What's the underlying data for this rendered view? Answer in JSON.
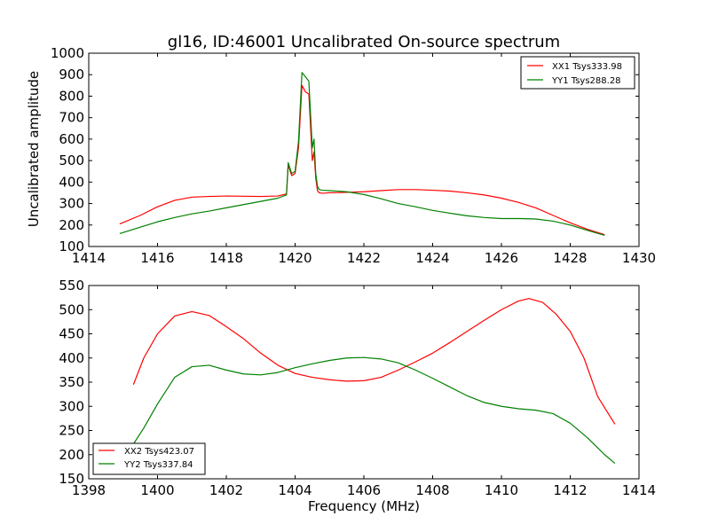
{
  "chart_data": [
    {
      "type": "line",
      "title": "gl16, ID:46001 Uncalibrated On-source spectrum",
      "xlabel": "",
      "ylabel": "Uncalibrated amplitude",
      "xlim": [
        1414,
        1430
      ],
      "ylim": [
        100,
        1000
      ],
      "xticks": [
        "1414",
        "1416",
        "1418",
        "1420",
        "1422",
        "1424",
        "1426",
        "1428",
        "1430"
      ],
      "yticks": [
        "100",
        "200",
        "300",
        "400",
        "500",
        "600",
        "700",
        "800",
        "900",
        "1000"
      ],
      "legend_position": "top-right",
      "grid": false,
      "series": [
        {
          "name": "XX1 Tsys333.98",
          "color": "#ff0000",
          "x": [
            1414.9,
            1415.5,
            1416.0,
            1416.5,
            1417.0,
            1417.5,
            1418.0,
            1418.5,
            1419.0,
            1419.5,
            1419.75,
            1419.8,
            1419.9,
            1420.0,
            1420.1,
            1420.2,
            1420.3,
            1420.4,
            1420.5,
            1420.55,
            1420.6,
            1420.65,
            1420.7,
            1420.8,
            1421.0,
            1421.5,
            1422.0,
            1422.5,
            1423.0,
            1423.5,
            1424.0,
            1424.5,
            1425.0,
            1425.5,
            1426.0,
            1426.5,
            1427.0,
            1427.5,
            1428.0,
            1428.5,
            1429.0
          ],
          "y": [
            205,
            245,
            285,
            315,
            330,
            333,
            335,
            334,
            333,
            335,
            345,
            480,
            430,
            440,
            560,
            850,
            820,
            810,
            500,
            540,
            420,
            360,
            350,
            348,
            350,
            352,
            355,
            360,
            365,
            365,
            362,
            358,
            350,
            340,
            325,
            305,
            280,
            245,
            210,
            180,
            155
          ]
        },
        {
          "name": "YY1 Tsys288.28",
          "color": "#008000",
          "x": [
            1414.9,
            1415.5,
            1416.0,
            1416.5,
            1417.0,
            1417.5,
            1418.0,
            1418.5,
            1419.0,
            1419.5,
            1419.75,
            1419.8,
            1419.9,
            1420.0,
            1420.1,
            1420.2,
            1420.3,
            1420.4,
            1420.5,
            1420.55,
            1420.6,
            1420.65,
            1420.7,
            1420.8,
            1421.0,
            1421.5,
            1422.0,
            1422.5,
            1423.0,
            1423.5,
            1424.0,
            1424.5,
            1425.0,
            1425.5,
            1426.0,
            1426.5,
            1427.0,
            1427.5,
            1428.0,
            1428.5,
            1429.0
          ],
          "y": [
            160,
            190,
            215,
            235,
            252,
            265,
            280,
            295,
            310,
            325,
            340,
            490,
            440,
            450,
            590,
            910,
            890,
            870,
            560,
            600,
            440,
            380,
            365,
            362,
            360,
            355,
            342,
            322,
            300,
            285,
            268,
            255,
            243,
            235,
            230,
            230,
            228,
            218,
            200,
            175,
            152
          ]
        }
      ]
    },
    {
      "type": "line",
      "title": "",
      "xlabel": "Frequency (MHz)",
      "ylabel": "",
      "xlim": [
        1398,
        1414
      ],
      "ylim": [
        150,
        550
      ],
      "xticks": [
        "1398",
        "1400",
        "1402",
        "1404",
        "1406",
        "1408",
        "1410",
        "1412",
        "1414"
      ],
      "yticks": [
        "150",
        "200",
        "250",
        "300",
        "350",
        "400",
        "450",
        "500",
        "550"
      ],
      "legend_position": "lower-left",
      "grid": false,
      "series": [
        {
          "name": "XX2 Tsys423.07",
          "color": "#ff0000",
          "x": [
            1399.3,
            1399.6,
            1400.0,
            1400.5,
            1401.0,
            1401.5,
            1402.0,
            1402.5,
            1403.0,
            1403.5,
            1404.0,
            1404.5,
            1405.0,
            1405.5,
            1406.0,
            1406.5,
            1407.0,
            1407.5,
            1408.0,
            1408.5,
            1409.0,
            1409.5,
            1410.0,
            1410.5,
            1410.8,
            1411.2,
            1411.6,
            1412.0,
            1412.4,
            1412.8,
            1413.3
          ],
          "y": [
            345,
            400,
            450,
            487,
            496,
            488,
            465,
            440,
            410,
            385,
            368,
            360,
            355,
            352,
            353,
            360,
            375,
            392,
            410,
            432,
            455,
            478,
            500,
            518,
            523,
            515,
            490,
            455,
            400,
            320,
            263
          ]
        },
        {
          "name": "YY2 Tsys337.84",
          "color": "#008000",
          "x": [
            1399.3,
            1399.6,
            1400.0,
            1400.5,
            1401.0,
            1401.5,
            1402.0,
            1402.5,
            1403.0,
            1403.5,
            1404.0,
            1404.5,
            1405.0,
            1405.5,
            1406.0,
            1406.5,
            1407.0,
            1407.5,
            1408.0,
            1408.5,
            1409.0,
            1409.5,
            1410.0,
            1410.5,
            1411.0,
            1411.5,
            1412.0,
            1412.5,
            1413.0,
            1413.3
          ],
          "y": [
            222,
            255,
            305,
            360,
            382,
            385,
            375,
            367,
            365,
            370,
            380,
            388,
            395,
            400,
            401,
            398,
            390,
            375,
            358,
            340,
            322,
            308,
            300,
            295,
            292,
            285,
            265,
            235,
            200,
            182
          ]
        }
      ]
    }
  ]
}
